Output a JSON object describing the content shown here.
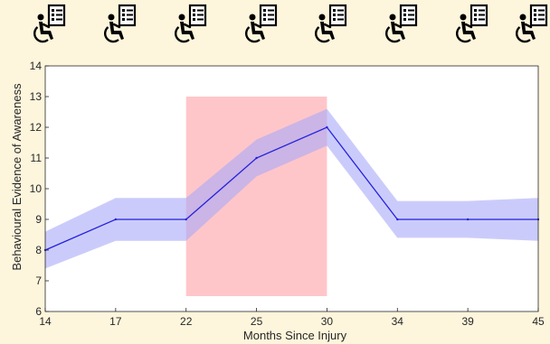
{
  "icons": {
    "name": "wheelchair-checklist-icon",
    "count": 8
  },
  "chart_data": {
    "type": "line",
    "title": "",
    "xlabel": "Months Since Injury",
    "ylabel": "Behavioural Evidence of Awareness",
    "categories": [
      "14",
      "17",
      "22",
      "25",
      "30",
      "34",
      "39",
      "45"
    ],
    "series": [
      {
        "name": "",
        "values": [
          8,
          9,
          9,
          11,
          12,
          9,
          9,
          9
        ],
        "band_lower": [
          7.4,
          8.3,
          8.3,
          10.4,
          11.4,
          8.4,
          8.4,
          8.3
        ],
        "band_upper": [
          8.6,
          9.7,
          9.7,
          11.6,
          12.6,
          9.6,
          9.6,
          9.7
        ]
      }
    ],
    "highlight": {
      "x_start": "22",
      "x_end": "30",
      "y_start": 6.5,
      "y_end": 13,
      "color": "#ffb3b8"
    },
    "ylim": [
      6,
      14
    ],
    "yticks": [
      6,
      7,
      8,
      9,
      10,
      11,
      12,
      13,
      14
    ],
    "grid": false,
    "colors": {
      "line": "#2222dd",
      "band": "#a8a8f8",
      "background": "#fdf5dc",
      "plot_bg": "#ffffff"
    }
  }
}
